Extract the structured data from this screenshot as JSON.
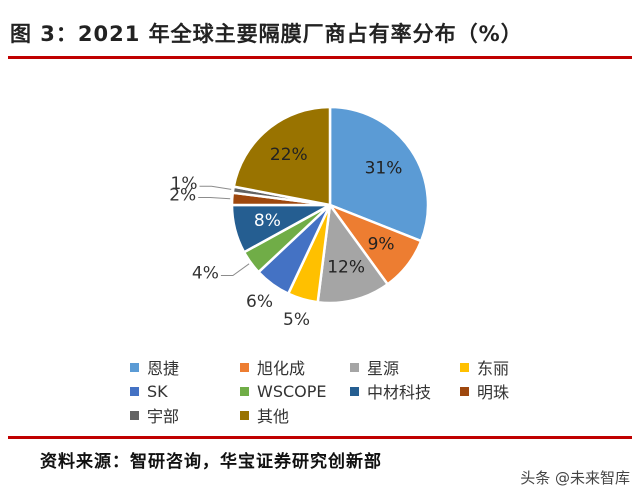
{
  "title": "图 3：2021 年全球主要隔膜厂商占有率分布（%）",
  "source": "资料来源：智研咨询，华宝证券研究创新部",
  "watermark": "头条 @未来智库",
  "chart_data": {
    "type": "pie",
    "title": "",
    "unit": "%",
    "slices": [
      {
        "name": "恩捷",
        "value": 31,
        "label": "31%",
        "color": "#5b9bd5"
      },
      {
        "name": "旭化成",
        "value": 9,
        "label": "9%",
        "color": "#ed7d31"
      },
      {
        "name": "星源",
        "value": 12,
        "label": "12%",
        "color": "#a5a5a5"
      },
      {
        "name": "东丽",
        "value": 5,
        "label": "5%",
        "color": "#ffc000"
      },
      {
        "name": "SK",
        "value": 6,
        "label": "6%",
        "color": "#4472c4"
      },
      {
        "name": "WSCOPE",
        "value": 4,
        "label": "4%",
        "color": "#70ad47"
      },
      {
        "name": "中材科技",
        "value": 8,
        "label": "8%",
        "color": "#255e91"
      },
      {
        "name": "明珠",
        "value": 2,
        "label": "2%",
        "color": "#9e480e"
      },
      {
        "name": "宇部",
        "value": 1,
        "label": "1%",
        "color": "#636363"
      },
      {
        "name": "其他",
        "value": 22,
        "label": "22%",
        "color": "#997300"
      }
    ],
    "legend_position": "bottom"
  }
}
